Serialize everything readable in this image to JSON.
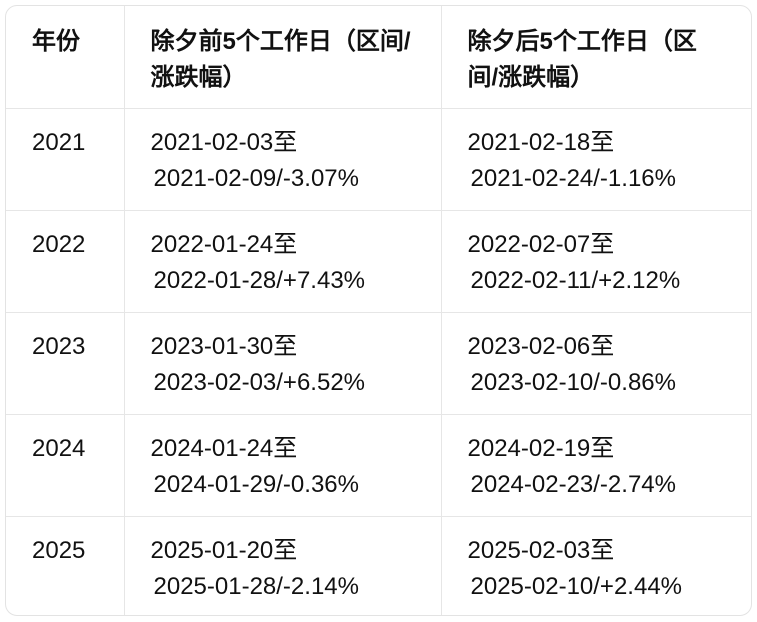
{
  "table": {
    "header": [
      "年份",
      "除夕前5个工作日（区间/涨跌幅）",
      "除夕后5个工作日（区间/涨跌幅）"
    ],
    "rows": [
      [
        "2021",
        [
          "2021-02-03至",
          "2021-02-09/-3.07%"
        ],
        [
          "2021-02-18至",
          "2021-02-24/-1.16%"
        ]
      ],
      [
        "2022",
        [
          "2022-01-24至",
          "2022-01-28/+7.43%"
        ],
        [
          "2022-02-07至",
          "2022-02-11/+2.12%"
        ]
      ],
      [
        "2023",
        [
          "2023-01-30至",
          "2023-02-03/+6.52%"
        ],
        [
          "2023-02-06至",
          "2023-02-10/-0.86%"
        ]
      ],
      [
        "2024",
        [
          "2024-01-24至",
          "2024-01-29/-0.36%"
        ],
        [
          "2024-02-19至",
          "2024-02-23/-2.74%"
        ]
      ],
      [
        "2025",
        [
          "2025-01-20至",
          "2025-01-28/-2.14%"
        ],
        [
          "2025-02-03至",
          "2025-02-10/+2.44%"
        ]
      ]
    ]
  }
}
